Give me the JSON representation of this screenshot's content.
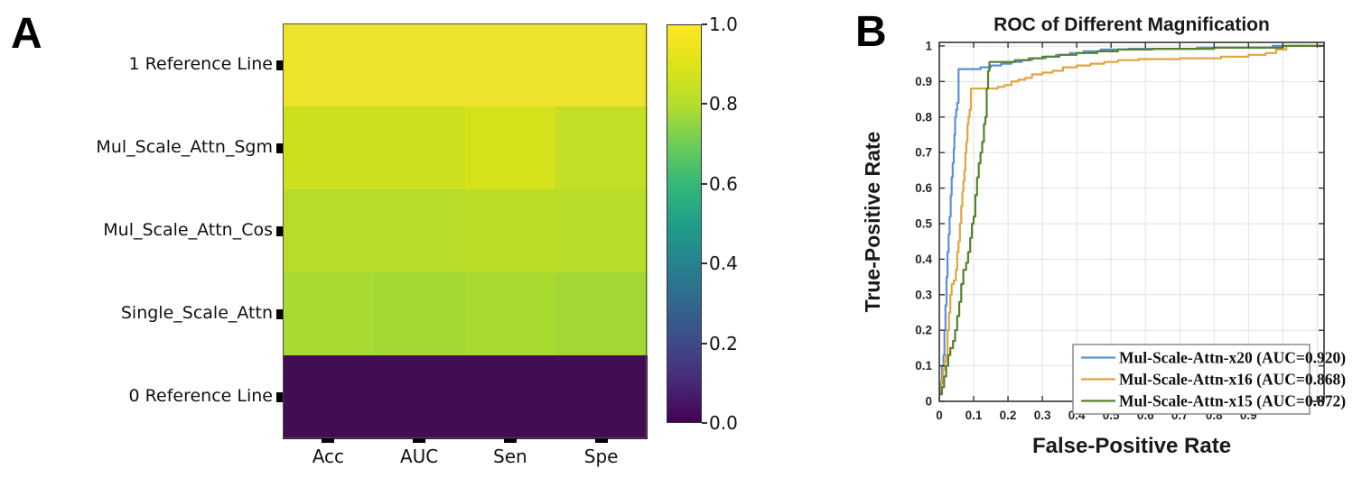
{
  "panels": {
    "a": {
      "letter": "A"
    },
    "b": {
      "letter": "B"
    }
  },
  "chart_data": [
    {
      "type": "heatmap",
      "panel": "A",
      "rows": [
        "1 Reference Line",
        "Mul_Scale_Attn_Sgm",
        "Mul_Scale_Attn_Cos",
        "Single_Scale_Attn",
        "0 Reference Line"
      ],
      "columns": [
        "Acc",
        "AUC",
        "Sen",
        "Spe"
      ],
      "values": [
        [
          1.0,
          1.0,
          1.0,
          1.0
        ],
        [
          0.9,
          0.9,
          0.92,
          0.88
        ],
        [
          0.86,
          0.86,
          0.87,
          0.86
        ],
        [
          0.82,
          0.81,
          0.82,
          0.8
        ],
        [
          0.0,
          0.0,
          0.0,
          0.0
        ]
      ],
      "cell_colors": [
        [
          "#EDE22C",
          "#EDE22C",
          "#EDE22C",
          "#EDE22C"
        ],
        [
          "#CCE01F",
          "#CCE01F",
          "#D4E21B",
          "#C2DE25"
        ],
        [
          "#B7DC29",
          "#B7DC29",
          "#BCDD25",
          "#B7DC29"
        ],
        [
          "#A9DA31",
          "#A4D833",
          "#A8DA30",
          "#A2D735"
        ],
        [
          "#430D54",
          "#430D54",
          "#430D54",
          "#430D54"
        ]
      ],
      "colorbar": {
        "min": 0.0,
        "max": 1.0,
        "colormap": "viridis",
        "tick_labels": [
          "1.0",
          "0.8",
          "0.6",
          "0.4",
          "0.2",
          "0.0"
        ],
        "gradient_stops_bottom_to_top": [
          "#440154",
          "#482878",
          "#3E4A89",
          "#31688E",
          "#26828E",
          "#1F9E89",
          "#35B779",
          "#6DCD59",
          "#B4DE2C",
          "#DFE318",
          "#FDE725"
        ]
      }
    },
    {
      "type": "line",
      "panel": "B",
      "title": "ROC of Different Magnification",
      "xlabel": "False-Positive Rate",
      "ylabel": "True-Positive Rate",
      "xlim": [
        0,
        1.12
      ],
      "ylim": [
        0,
        1.01
      ],
      "grid": true,
      "legend_position": "lower-right",
      "xtick_labels": [
        "0",
        "0.1",
        "0.2",
        "0.3",
        "0.4",
        "0.5",
        "0.6",
        "0.7",
        "0.8",
        "0.9"
      ],
      "ytick_labels": [
        "0",
        "0.1",
        "0.2",
        "0.3",
        "0.4",
        "0.5",
        "0.6",
        "0.7",
        "0.8",
        "0.9",
        "1"
      ],
      "series": [
        {
          "name": "Mul-Scale-Attn-x20 (AUC=0.920)",
          "auc": 0.92,
          "color": "#5B8FD9",
          "points": [
            [
              0,
              0.02
            ],
            [
              0.004,
              0.05
            ],
            [
              0.008,
              0.1
            ],
            [
              0.012,
              0.13
            ],
            [
              0.015,
              0.2
            ],
            [
              0.018,
              0.27
            ],
            [
              0.021,
              0.35
            ],
            [
              0.024,
              0.42
            ],
            [
              0.027,
              0.47
            ],
            [
              0.03,
              0.52
            ],
            [
              0.033,
              0.58
            ],
            [
              0.036,
              0.63
            ],
            [
              0.039,
              0.67
            ],
            [
              0.042,
              0.71
            ],
            [
              0.044,
              0.75
            ],
            [
              0.046,
              0.8
            ],
            [
              0.049,
              0.82
            ],
            [
              0.052,
              0.84
            ],
            [
              0.056,
              0.935
            ],
            [
              0.12,
              0.94
            ],
            [
              0.15,
              0.945
            ],
            [
              0.18,
              0.95
            ],
            [
              0.21,
              0.955
            ],
            [
              0.24,
              0.96
            ],
            [
              0.27,
              0.965
            ],
            [
              0.31,
              0.97
            ],
            [
              0.34,
              0.975
            ],
            [
              0.38,
              0.98
            ],
            [
              0.42,
              0.985
            ],
            [
              0.47,
              0.99
            ],
            [
              0.55,
              0.992
            ],
            [
              0.75,
              0.995
            ],
            [
              0.97,
              1.0
            ],
            [
              1.12,
              1.0
            ]
          ]
        },
        {
          "name": "Mul-Scale-Attn-x16 (AUC=0.868)",
          "auc": 0.868,
          "color": "#DFA53F",
          "points": [
            [
              0,
              0.03
            ],
            [
              0.006,
              0.06
            ],
            [
              0.011,
              0.09
            ],
            [
              0.015,
              0.11
            ],
            [
              0.02,
              0.13
            ],
            [
              0.024,
              0.2
            ],
            [
              0.028,
              0.25
            ],
            [
              0.032,
              0.3
            ],
            [
              0.036,
              0.33
            ],
            [
              0.042,
              0.34
            ],
            [
              0.048,
              0.37
            ],
            [
              0.052,
              0.42
            ],
            [
              0.056,
              0.45
            ],
            [
              0.06,
              0.5
            ],
            [
              0.064,
              0.55
            ],
            [
              0.067,
              0.59
            ],
            [
              0.07,
              0.62
            ],
            [
              0.073,
              0.65
            ],
            [
              0.076,
              0.7
            ],
            [
              0.079,
              0.73
            ],
            [
              0.082,
              0.78
            ],
            [
              0.085,
              0.8
            ],
            [
              0.088,
              0.82
            ],
            [
              0.092,
              0.88
            ],
            [
              0.17,
              0.885
            ],
            [
              0.19,
              0.89
            ],
            [
              0.21,
              0.9
            ],
            [
              0.23,
              0.905
            ],
            [
              0.25,
              0.91
            ],
            [
              0.27,
              0.92
            ],
            [
              0.3,
              0.925
            ],
            [
              0.33,
              0.93
            ],
            [
              0.36,
              0.94
            ],
            [
              0.4,
              0.945
            ],
            [
              0.44,
              0.95
            ],
            [
              0.48,
              0.955
            ],
            [
              0.52,
              0.96
            ],
            [
              0.58,
              0.963
            ],
            [
              0.7,
              0.965
            ],
            [
              0.82,
              0.97
            ],
            [
              0.9,
              0.975
            ],
            [
              0.95,
              0.98
            ],
            [
              0.98,
              0.99
            ],
            [
              1.01,
              1.0
            ],
            [
              1.12,
              1.0
            ]
          ]
        },
        {
          "name": "Mul-Scale-Attn-x15 (AUC=0.872)",
          "auc": 0.872,
          "color": "#55812B",
          "points": [
            [
              0,
              0.02
            ],
            [
              0.008,
              0.04
            ],
            [
              0.014,
              0.07
            ],
            [
              0.02,
              0.1
            ],
            [
              0.026,
              0.13
            ],
            [
              0.032,
              0.15
            ],
            [
              0.04,
              0.17
            ],
            [
              0.046,
              0.2
            ],
            [
              0.052,
              0.24
            ],
            [
              0.058,
              0.28
            ],
            [
              0.064,
              0.33
            ],
            [
              0.07,
              0.37
            ],
            [
              0.078,
              0.39
            ],
            [
              0.084,
              0.42
            ],
            [
              0.09,
              0.46
            ],
            [
              0.095,
              0.5
            ],
            [
              0.1,
              0.52
            ],
            [
              0.105,
              0.58
            ],
            [
              0.11,
              0.63
            ],
            [
              0.115,
              0.67
            ],
            [
              0.12,
              0.7
            ],
            [
              0.125,
              0.73
            ],
            [
              0.13,
              0.78
            ],
            [
              0.134,
              0.8
            ],
            [
              0.138,
              0.88
            ],
            [
              0.142,
              0.93
            ],
            [
              0.146,
              0.955
            ],
            [
              0.22,
              0.96
            ],
            [
              0.26,
              0.965
            ],
            [
              0.3,
              0.97
            ],
            [
              0.35,
              0.975
            ],
            [
              0.4,
              0.98
            ],
            [
              0.46,
              0.985
            ],
            [
              0.52,
              0.99
            ],
            [
              0.62,
              0.992
            ],
            [
              0.8,
              0.995
            ],
            [
              1.0,
              1.0
            ],
            [
              1.12,
              1.0
            ]
          ]
        }
      ]
    }
  ]
}
